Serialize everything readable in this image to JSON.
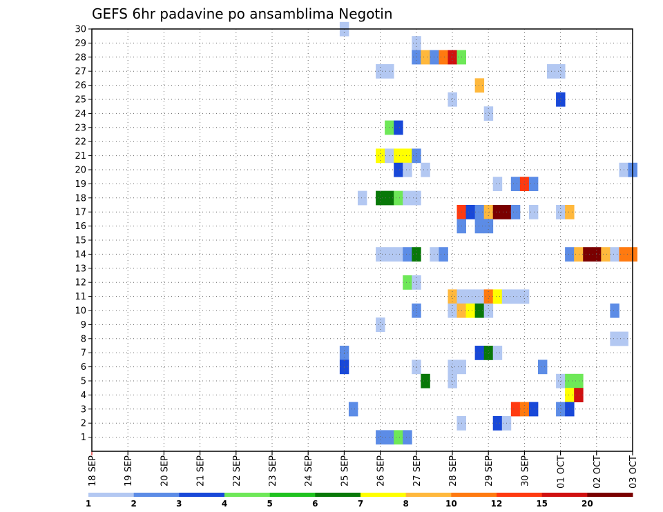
{
  "chart_data": {
    "type": "heatmap",
    "title": "GEFS 6hr padavine po ansamblima Negotin",
    "xlabel": "",
    "ylabel": "",
    "x_ticks": [
      "18 SEP",
      "19 SEP",
      "20 SEP",
      "21 SEP",
      "22 SEP",
      "23 SEP",
      "24 SEP",
      "25 SEP",
      "26 SEP",
      "27 SEP",
      "28 SEP",
      "29 SEP",
      "30 SEP",
      "01 OCT",
      "02 OCT",
      "03 OCT"
    ],
    "xlim": [
      0,
      15
    ],
    "ylim": [
      0,
      30
    ],
    "y_ticks": [
      "1",
      "2",
      "3",
      "4",
      "5",
      "6",
      "7",
      "8",
      "9",
      "10",
      "11",
      "12",
      "13",
      "14",
      "15",
      "16",
      "17",
      "18",
      "19",
      "20",
      "21",
      "22",
      "23",
      "24",
      "25",
      "26",
      "27",
      "28",
      "29",
      "30"
    ],
    "grid": true,
    "legend_position": "bottom",
    "color_scale": {
      "levels": [
        "1",
        "2",
        "3",
        "4",
        "5",
        "6",
        "7",
        "8",
        "10",
        "12",
        "15",
        "20"
      ],
      "colors": [
        "#b3c8f2",
        "#5c8ce6",
        "#1848d8",
        "#6ee858",
        "#1fc21f",
        "#087808",
        "#ffff00",
        "#ffb83c",
        "#ff7a10",
        "#ff3a10",
        "#d01010",
        "#7a0000"
      ]
    },
    "values": [
      {
        "x": 7.0,
        "y": 30,
        "c": 0
      },
      {
        "x": 9.0,
        "y": 29,
        "c": 0
      },
      {
        "x": 9.0,
        "y": 28,
        "c": 1
      },
      {
        "x": 9.25,
        "y": 28,
        "c": 7
      },
      {
        "x": 9.5,
        "y": 28,
        "c": 1
      },
      {
        "x": 9.75,
        "y": 28,
        "c": 8
      },
      {
        "x": 10.0,
        "y": 28,
        "c": 10
      },
      {
        "x": 10.25,
        "y": 28,
        "c": 3
      },
      {
        "x": 8.0,
        "y": 27,
        "c": 0
      },
      {
        "x": 8.25,
        "y": 27,
        "c": 0
      },
      {
        "x": 12.75,
        "y": 27,
        "c": 0
      },
      {
        "x": 13.0,
        "y": 27,
        "c": 0
      },
      {
        "x": 10.75,
        "y": 26,
        "c": 7
      },
      {
        "x": 10.0,
        "y": 25,
        "c": 0
      },
      {
        "x": 13.0,
        "y": 25,
        "c": 2
      },
      {
        "x": 11.0,
        "y": 24,
        "c": 0
      },
      {
        "x": 8.25,
        "y": 23,
        "c": 3
      },
      {
        "x": 8.5,
        "y": 23,
        "c": 2
      },
      {
        "x": 8.0,
        "y": 21,
        "c": 6
      },
      {
        "x": 8.25,
        "y": 21,
        "c": 0
      },
      {
        "x": 8.5,
        "y": 21,
        "c": 6
      },
      {
        "x": 8.75,
        "y": 21,
        "c": 6
      },
      {
        "x": 9.0,
        "y": 21,
        "c": 1
      },
      {
        "x": 8.5,
        "y": 20,
        "c": 2
      },
      {
        "x": 8.75,
        "y": 20,
        "c": 0
      },
      {
        "x": 9.25,
        "y": 20,
        "c": 0
      },
      {
        "x": 14.75,
        "y": 20,
        "c": 0
      },
      {
        "x": 15.0,
        "y": 20,
        "c": 1
      },
      {
        "x": 11.25,
        "y": 19,
        "c": 0
      },
      {
        "x": 11.75,
        "y": 19,
        "c": 1
      },
      {
        "x": 12.0,
        "y": 19,
        "c": 9
      },
      {
        "x": 12.25,
        "y": 19,
        "c": 1
      },
      {
        "x": 7.5,
        "y": 18,
        "c": 0
      },
      {
        "x": 8.0,
        "y": 18,
        "c": 5
      },
      {
        "x": 8.25,
        "y": 18,
        "c": 5
      },
      {
        "x": 8.5,
        "y": 18,
        "c": 3
      },
      {
        "x": 8.75,
        "y": 18,
        "c": 0
      },
      {
        "x": 9.0,
        "y": 18,
        "c": 0
      },
      {
        "x": 10.25,
        "y": 17,
        "c": 9
      },
      {
        "x": 10.5,
        "y": 17,
        "c": 2
      },
      {
        "x": 10.75,
        "y": 17,
        "c": 1
      },
      {
        "x": 11.0,
        "y": 17,
        "c": 7
      },
      {
        "x": 11.25,
        "y": 17,
        "c": 11
      },
      {
        "x": 11.5,
        "y": 17,
        "c": 11
      },
      {
        "x": 11.75,
        "y": 17,
        "c": 1
      },
      {
        "x": 12.25,
        "y": 17,
        "c": 0
      },
      {
        "x": 13.0,
        "y": 17,
        "c": 0
      },
      {
        "x": 13.25,
        "y": 17,
        "c": 7
      },
      {
        "x": 10.25,
        "y": 16,
        "c": 1
      },
      {
        "x": 10.75,
        "y": 16,
        "c": 1
      },
      {
        "x": 11.0,
        "y": 16,
        "c": 1
      },
      {
        "x": 8.0,
        "y": 14,
        "c": 0
      },
      {
        "x": 8.25,
        "y": 14,
        "c": 0
      },
      {
        "x": 8.5,
        "y": 14,
        "c": 0
      },
      {
        "x": 8.75,
        "y": 14,
        "c": 1
      },
      {
        "x": 9.0,
        "y": 14,
        "c": 5
      },
      {
        "x": 9.5,
        "y": 14,
        "c": 0
      },
      {
        "x": 9.75,
        "y": 14,
        "c": 1
      },
      {
        "x": 13.25,
        "y": 14,
        "c": 1
      },
      {
        "x": 13.5,
        "y": 14,
        "c": 7
      },
      {
        "x": 13.75,
        "y": 14,
        "c": 11
      },
      {
        "x": 14.0,
        "y": 14,
        "c": 11
      },
      {
        "x": 14.25,
        "y": 14,
        "c": 7
      },
      {
        "x": 14.5,
        "y": 14,
        "c": 0
      },
      {
        "x": 14.75,
        "y": 14,
        "c": 8
      },
      {
        "x": 15.0,
        "y": 14,
        "c": 8
      },
      {
        "x": 8.75,
        "y": 12,
        "c": 3
      },
      {
        "x": 9.0,
        "y": 12,
        "c": 0
      },
      {
        "x": 10.0,
        "y": 11,
        "c": 7
      },
      {
        "x": 10.25,
        "y": 11,
        "c": 0
      },
      {
        "x": 10.5,
        "y": 11,
        "c": 0
      },
      {
        "x": 10.75,
        "y": 11,
        "c": 0
      },
      {
        "x": 11.0,
        "y": 11,
        "c": 8
      },
      {
        "x": 11.25,
        "y": 11,
        "c": 6
      },
      {
        "x": 11.5,
        "y": 11,
        "c": 0
      },
      {
        "x": 11.75,
        "y": 11,
        "c": 0
      },
      {
        "x": 12.0,
        "y": 11,
        "c": 0
      },
      {
        "x": 9.0,
        "y": 10,
        "c": 1
      },
      {
        "x": 10.0,
        "y": 10,
        "c": 0
      },
      {
        "x": 10.25,
        "y": 10,
        "c": 7
      },
      {
        "x": 10.5,
        "y": 10,
        "c": 6
      },
      {
        "x": 10.75,
        "y": 10,
        "c": 5
      },
      {
        "x": 11.0,
        "y": 10,
        "c": 0
      },
      {
        "x": 14.5,
        "y": 10,
        "c": 1
      },
      {
        "x": 8.0,
        "y": 9,
        "c": 0
      },
      {
        "x": 14.5,
        "y": 8,
        "c": 0
      },
      {
        "x": 14.75,
        "y": 8,
        "c": 0
      },
      {
        "x": 7.0,
        "y": 7,
        "c": 1
      },
      {
        "x": 10.75,
        "y": 7,
        "c": 2
      },
      {
        "x": 11.0,
        "y": 7,
        "c": 5
      },
      {
        "x": 11.25,
        "y": 7,
        "c": 0
      },
      {
        "x": 7.0,
        "y": 6,
        "c": 2
      },
      {
        "x": 9.0,
        "y": 6,
        "c": 0
      },
      {
        "x": 10.0,
        "y": 6,
        "c": 0
      },
      {
        "x": 10.25,
        "y": 6,
        "c": 0
      },
      {
        "x": 12.5,
        "y": 6,
        "c": 1
      },
      {
        "x": 9.25,
        "y": 5,
        "c": 5
      },
      {
        "x": 10.0,
        "y": 5,
        "c": 0
      },
      {
        "x": 13.0,
        "y": 5,
        "c": 0
      },
      {
        "x": 13.25,
        "y": 5,
        "c": 3
      },
      {
        "x": 13.5,
        "y": 5,
        "c": 3
      },
      {
        "x": 13.25,
        "y": 4,
        "c": 6
      },
      {
        "x": 13.5,
        "y": 4,
        "c": 10
      },
      {
        "x": 7.25,
        "y": 3,
        "c": 1
      },
      {
        "x": 11.75,
        "y": 3,
        "c": 9
      },
      {
        "x": 12.0,
        "y": 3,
        "c": 8
      },
      {
        "x": 12.25,
        "y": 3,
        "c": 2
      },
      {
        "x": 13.0,
        "y": 3,
        "c": 1
      },
      {
        "x": 13.25,
        "y": 3,
        "c": 2
      },
      {
        "x": 10.25,
        "y": 2,
        "c": 0
      },
      {
        "x": 11.25,
        "y": 2,
        "c": 2
      },
      {
        "x": 11.5,
        "y": 2,
        "c": 0
      },
      {
        "x": 8.0,
        "y": 1,
        "c": 1
      },
      {
        "x": 8.25,
        "y": 1,
        "c": 1
      },
      {
        "x": 8.5,
        "y": 1,
        "c": 3
      },
      {
        "x": 8.75,
        "y": 1,
        "c": 1
      }
    ]
  }
}
